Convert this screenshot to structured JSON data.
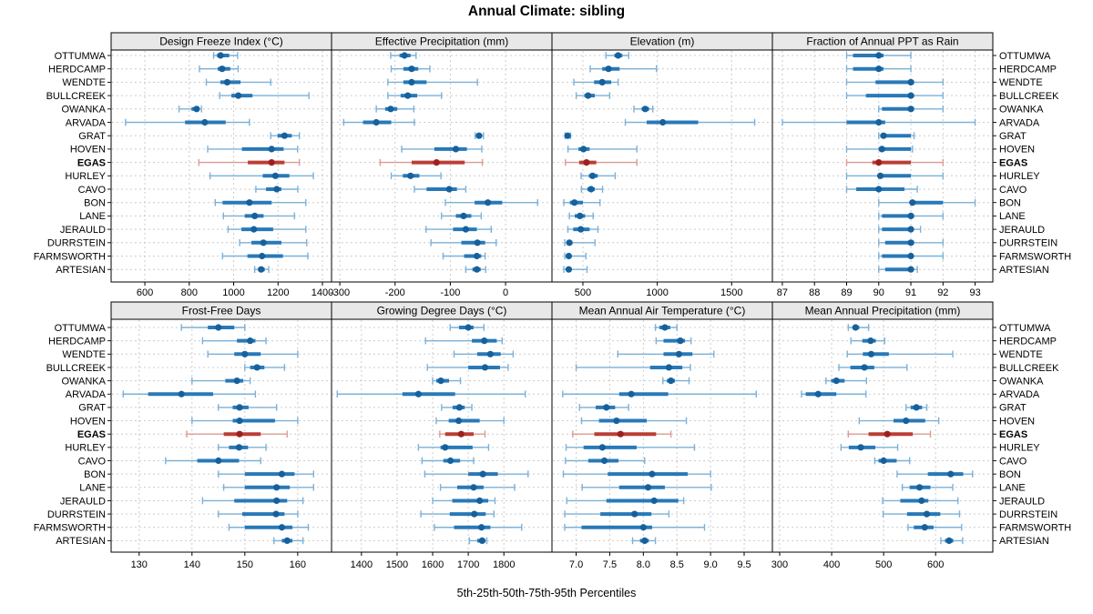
{
  "title": "Annual Climate: sibling",
  "caption": "5th-25th-50th-75th-95th Percentiles",
  "highlight_station": "EGAS",
  "colors": {
    "blue_dot": "#16619c",
    "blue_bar": "#2879b8",
    "blue_whisker": "#7cb1d7",
    "red_dot": "#9e1f1f",
    "red_bar": "#bb3e36",
    "red_whisker": "#dc9b94",
    "strip_bg": "#e8e8e8",
    "panel_bg": "#ffffff",
    "grid": "#cccccc",
    "border": "#000000"
  },
  "chart_data": {
    "type": "trellis-dotplot-percentiles",
    "percentile_order": [
      "5th",
      "25th",
      "50th",
      "75th",
      "95th"
    ],
    "stations": [
      "OTTUMWA",
      "HERDCAMP",
      "WENDTE",
      "BULLCREEK",
      "OWANKA",
      "ARVADA",
      "GRAT",
      "HOVEN",
      "EGAS",
      "HURLEY",
      "CAVO",
      "BON",
      "LANE",
      "JERAULD",
      "DURRSTEIN",
      "FARMSWORTH",
      "ARTESIAN"
    ],
    "panels": [
      {
        "label": "Design Freeze Index (°C)",
        "grid_row": 0,
        "grid_col": 0,
        "xlim": [
          448,
          1441
        ],
        "ticks": [
          600,
          800,
          1000,
          1200,
          1400
        ],
        "tick_labels": [
          "600",
          "800",
          "1000",
          "1200",
          "1400"
        ],
        "values": [
          [
            910,
            925,
            941,
            980,
            1018
          ],
          [
            846,
            928,
            948,
            985,
            1020
          ],
          [
            877,
            940,
            971,
            1031,
            1167
          ],
          [
            937,
            990,
            1021,
            1085,
            1339
          ],
          [
            754,
            810,
            833,
            846,
            855
          ],
          [
            513,
            781,
            870,
            964,
            1071
          ],
          [
            1167,
            1198,
            1229,
            1262,
            1296
          ],
          [
            883,
            1037,
            1171,
            1225,
            1288
          ],
          [
            843,
            1064,
            1171,
            1229,
            1296
          ],
          [
            894,
            1131,
            1188,
            1251,
            1359
          ],
          [
            1100,
            1146,
            1194,
            1215,
            1289
          ],
          [
            917,
            950,
            1071,
            1171,
            1325
          ],
          [
            954,
            1050,
            1095,
            1135,
            1274
          ],
          [
            975,
            1035,
            1091,
            1178,
            1325
          ],
          [
            1027,
            1080,
            1134,
            1215,
            1329
          ],
          [
            950,
            1062,
            1128,
            1222,
            1334
          ],
          [
            1095,
            1110,
            1124,
            1140,
            1158
          ]
        ]
      },
      {
        "label": "Effective Precipitation (mm)",
        "grid_row": 0,
        "grid_col": 1,
        "xlim": [
          -315,
          84
        ],
        "ticks": [
          -300,
          -200,
          -100,
          0
        ],
        "tick_labels": [
          "-300",
          "-200",
          "-100",
          "0"
        ],
        "values": [
          [
            -208,
            -192,
            -183,
            -172,
            -162
          ],
          [
            -207,
            -185,
            -170,
            -158,
            -137
          ],
          [
            -213,
            -185,
            -170,
            -143,
            -51
          ],
          [
            -213,
            -190,
            -177,
            -160,
            -116
          ],
          [
            -234,
            -218,
            -208,
            -196,
            -166
          ],
          [
            -293,
            -258,
            -234,
            -207,
            -165
          ],
          [
            -55,
            -51,
            -48,
            -44,
            -40
          ],
          [
            -188,
            -129,
            -90,
            -70,
            -43
          ],
          [
            -227,
            -170,
            -125,
            -74,
            -42
          ],
          [
            -207,
            -186,
            -172,
            -156,
            -117
          ],
          [
            -165,
            -143,
            -102,
            -88,
            -72
          ],
          [
            -109,
            -56,
            -32,
            -6,
            58
          ],
          [
            -116,
            -90,
            -76,
            -62,
            -44
          ],
          [
            -144,
            -95,
            -72,
            -52,
            -26
          ],
          [
            -135,
            -80,
            -51,
            -37,
            -17
          ],
          [
            -113,
            -75,
            -52,
            -44,
            -37
          ],
          [
            -72,
            -60,
            -52,
            -45,
            -36
          ]
        ]
      },
      {
        "label": "Elevation (m)",
        "grid_row": 0,
        "grid_col": 2,
        "xlim": [
          292,
          1774
        ],
        "ticks": [
          500,
          1000,
          1500
        ],
        "tick_labels": [
          "500",
          "1000",
          "1500"
        ],
        "values": [
          [
            655,
            712,
            737,
            765,
            808
          ],
          [
            549,
            630,
            672,
            747,
            995
          ],
          [
            439,
            575,
            630,
            690,
            737
          ],
          [
            455,
            510,
            535,
            580,
            680
          ],
          [
            843,
            895,
            919,
            945,
            970
          ],
          [
            785,
            929,
            1037,
            1275,
            1655
          ],
          [
            380,
            390,
            397,
            407,
            417
          ],
          [
            400,
            470,
            504,
            545,
            863
          ],
          [
            382,
            475,
            524,
            590,
            863
          ],
          [
            488,
            540,
            565,
            600,
            717
          ],
          [
            490,
            530,
            555,
            580,
            632
          ],
          [
            372,
            412,
            443,
            500,
            615
          ],
          [
            409,
            445,
            480,
            515,
            569
          ],
          [
            399,
            435,
            486,
            545,
            601
          ],
          [
            378,
            395,
            409,
            430,
            581
          ],
          [
            378,
            393,
            405,
            420,
            520
          ],
          [
            372,
            390,
            405,
            420,
            528
          ]
        ]
      },
      {
        "label": "Fraction of Annual PPT as Rain",
        "grid_row": 0,
        "grid_col": 3,
        "xlim": [
          86.69,
          93.55
        ],
        "ticks": [
          87,
          88,
          89,
          90,
          91,
          92,
          93
        ],
        "tick_labels": [
          "87",
          "88",
          "89",
          "90",
          "91",
          "92",
          "93"
        ],
        "values": [
          [
            89,
            89.2,
            90,
            90.15,
            91
          ],
          [
            89,
            89.2,
            90,
            90.15,
            91
          ],
          [
            89,
            89.9,
            91,
            91.1,
            92
          ],
          [
            89,
            89.6,
            91,
            91.1,
            92
          ],
          [
            90,
            90.1,
            91,
            91.1,
            92
          ],
          [
            87,
            89,
            90,
            90.2,
            93
          ],
          [
            90,
            90.05,
            90.15,
            91,
            91.1
          ],
          [
            89,
            90,
            90.1,
            91,
            91.05
          ],
          [
            89,
            89.8,
            90,
            91,
            92
          ],
          [
            89,
            90,
            90.05,
            91,
            92
          ],
          [
            89,
            89.3,
            90,
            90.8,
            91.2
          ],
          [
            90,
            91,
            91.05,
            92,
            93
          ],
          [
            90,
            90.1,
            91,
            91.1,
            92
          ],
          [
            90,
            90.1,
            91,
            91.05,
            91.3
          ],
          [
            90,
            90.2,
            91,
            91.1,
            92
          ],
          [
            90,
            90.1,
            91,
            91.05,
            92
          ],
          [
            90,
            90.2,
            91,
            91.05,
            91.2
          ]
        ]
      },
      {
        "label": "Frost-Free Days",
        "grid_row": 1,
        "grid_col": 0,
        "xlim": [
          124.7,
          166.4
        ],
        "ticks": [
          130,
          140,
          150,
          160
        ],
        "tick_labels": [
          "130",
          "140",
          "150",
          "160"
        ],
        "values": [
          [
            138,
            143,
            145,
            148,
            150
          ],
          [
            142,
            148.5,
            151,
            152,
            154
          ],
          [
            143,
            148,
            150,
            153,
            160
          ],
          [
            150,
            151,
            152.3,
            153.7,
            157.5
          ],
          [
            140,
            146.3,
            148.5,
            149.7,
            151
          ],
          [
            127,
            131.7,
            138,
            144,
            152
          ],
          [
            145,
            147.7,
            149,
            150.7,
            156
          ],
          [
            140,
            147.7,
            149,
            155.7,
            160
          ],
          [
            139,
            146,
            149,
            153,
            158
          ],
          [
            145,
            147,
            148.9,
            150.6,
            154
          ],
          [
            135,
            141,
            145,
            148.9,
            153
          ],
          [
            145,
            150,
            157,
            159.4,
            163
          ],
          [
            146,
            150,
            156,
            158.5,
            163
          ],
          [
            142,
            148,
            156,
            158,
            161
          ],
          [
            145,
            149.5,
            155.9,
            157.5,
            160
          ],
          [
            147,
            150,
            157,
            159,
            162
          ],
          [
            155.5,
            157,
            158,
            159,
            161
          ]
        ]
      },
      {
        "label": "Growing Degree Days (°C)",
        "grid_row": 1,
        "grid_col": 1,
        "xlim": [
          1316,
          1935
        ],
        "ticks": [
          1400,
          1500,
          1600,
          1700,
          1800
        ],
        "tick_labels": [
          "1400",
          "1500",
          "1600",
          "1700",
          "1800"
        ],
        "values": [
          [
            1649,
            1674,
            1700,
            1715,
            1744
          ],
          [
            1580,
            1710,
            1745,
            1780,
            1795
          ],
          [
            1660,
            1725,
            1762,
            1791,
            1826
          ],
          [
            1585,
            1700,
            1747,
            1789,
            1812
          ],
          [
            1600,
            1610,
            1623,
            1646,
            1678
          ],
          [
            1332,
            1515,
            1560,
            1663,
            1860
          ],
          [
            1625,
            1656,
            1675,
            1690,
            1710
          ],
          [
            1610,
            1645,
            1673,
            1732,
            1800
          ],
          [
            1620,
            1635,
            1680,
            1715,
            1747
          ],
          [
            1560,
            1622,
            1635,
            1712,
            1757
          ],
          [
            1570,
            1630,
            1650,
            1677,
            1715
          ],
          [
            1578,
            1700,
            1741,
            1783,
            1868
          ],
          [
            1622,
            1669,
            1715,
            1743,
            1830
          ],
          [
            1600,
            1655,
            1732,
            1756,
            1775
          ],
          [
            1567,
            1648,
            1717,
            1749,
            1772
          ],
          [
            1605,
            1660,
            1737,
            1762,
            1850
          ],
          [
            1703,
            1725,
            1739,
            1748,
            1752
          ]
        ]
      },
      {
        "label": "Mean Annual Air Temperature (°C)",
        "grid_row": 1,
        "grid_col": 2,
        "xlim": [
          6.64,
          9.92
        ],
        "ticks": [
          7.0,
          7.5,
          8.0,
          8.5,
          9.0,
          9.5
        ],
        "tick_labels": [
          "7.0",
          "7.5",
          "8.0",
          "8.5",
          "9.0",
          "9.5"
        ],
        "values": [
          [
            8.18,
            8.24,
            8.32,
            8.4,
            8.5
          ],
          [
            8.19,
            8.3,
            8.55,
            8.62,
            8.71
          ],
          [
            7.62,
            8.3,
            8.53,
            8.73,
            9.05
          ],
          [
            7.0,
            8.1,
            8.38,
            8.58,
            8.7
          ],
          [
            8.29,
            8.35,
            8.41,
            8.47,
            8.68
          ],
          [
            6.8,
            7.64,
            7.82,
            8.37,
            9.68
          ],
          [
            7.05,
            7.29,
            7.45,
            7.58,
            7.78
          ],
          [
            7.08,
            7.34,
            7.6,
            8.05,
            8.64
          ],
          [
            6.95,
            7.27,
            7.66,
            8.19,
            8.41
          ],
          [
            6.85,
            7.11,
            7.39,
            7.9,
            8.76
          ],
          [
            6.84,
            7.18,
            7.42,
            7.63,
            8.02
          ],
          [
            6.81,
            7.47,
            8.13,
            8.66,
            9.0
          ],
          [
            7.09,
            7.64,
            8.07,
            8.32,
            9.01
          ],
          [
            6.86,
            7.45,
            8.16,
            8.52,
            8.6
          ],
          [
            6.83,
            7.36,
            7.87,
            8.12,
            8.38
          ],
          [
            6.83,
            7.08,
            8.0,
            8.13,
            8.91
          ],
          [
            7.84,
            7.95,
            8.02,
            8.08,
            8.18
          ]
        ]
      },
      {
        "label": "Mean Annual Precipitation (mm)",
        "grid_row": 1,
        "grid_col": 3,
        "xlim": [
          286,
          710
        ],
        "ticks": [
          300,
          400,
          500,
          600
        ],
        "tick_labels": [
          "300",
          "400",
          "500",
          "600"
        ],
        "values": [
          [
            432,
            440,
            446,
            453,
            471
          ],
          [
            437,
            459,
            475,
            485,
            502
          ],
          [
            430,
            460,
            476,
            510,
            633
          ],
          [
            414,
            436,
            463,
            482,
            545
          ],
          [
            389,
            399,
            409,
            425,
            467
          ],
          [
            342,
            350,
            374,
            409,
            466
          ],
          [
            543,
            552,
            563,
            574,
            583
          ],
          [
            453,
            519,
            543,
            580,
            606
          ],
          [
            432,
            471,
            507,
            556,
            590
          ],
          [
            418,
            433,
            456,
            484,
            527
          ],
          [
            483,
            490,
            500,
            525,
            550
          ],
          [
            526,
            585,
            629,
            653,
            671
          ],
          [
            536,
            550,
            569,
            590,
            633
          ],
          [
            498,
            532,
            573,
            586,
            643
          ],
          [
            499,
            545,
            583,
            609,
            646
          ],
          [
            547,
            558,
            579,
            596,
            650
          ],
          [
            610,
            618,
            626,
            634,
            652
          ]
        ]
      }
    ]
  }
}
